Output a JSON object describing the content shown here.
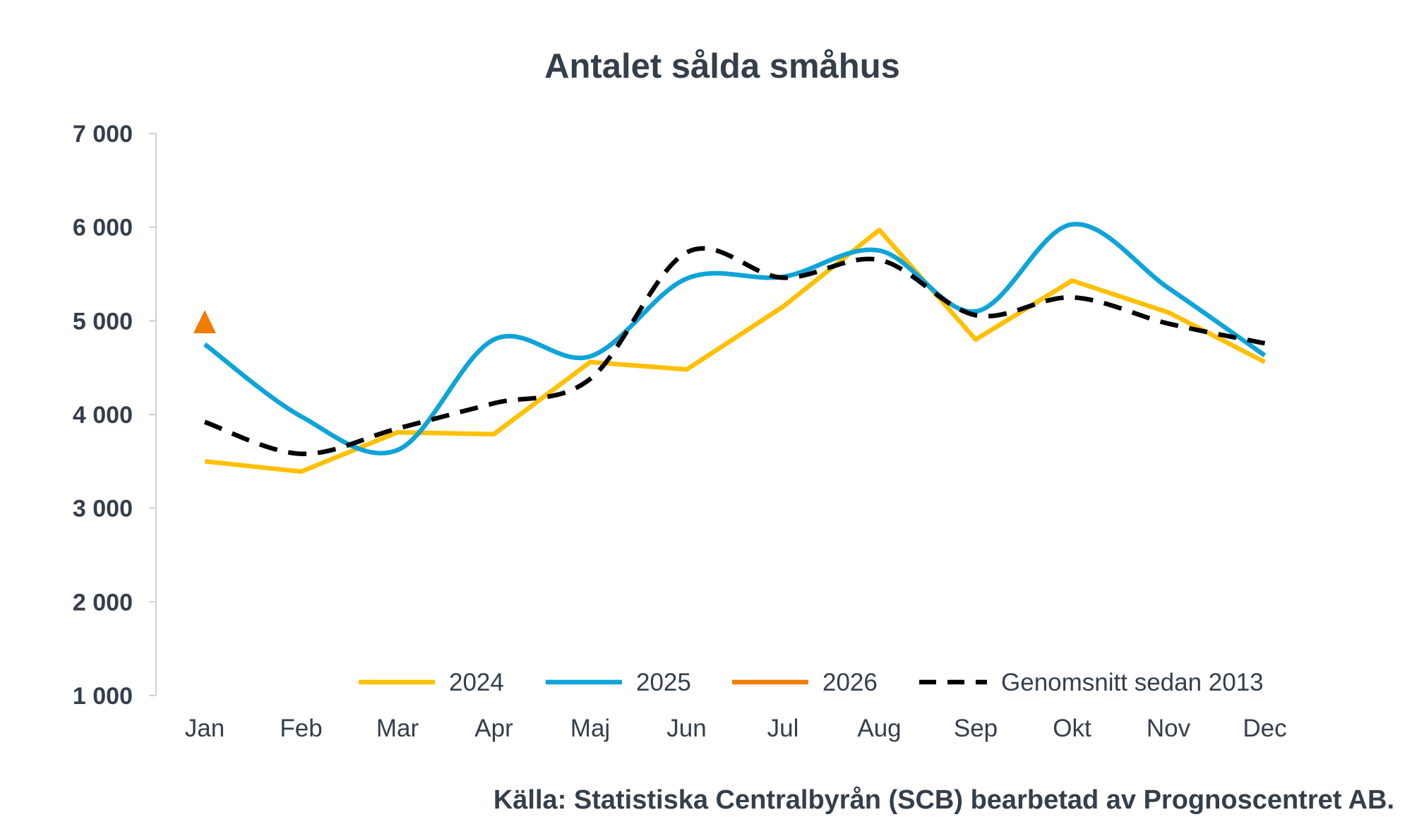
{
  "chart_data": {
    "type": "line",
    "title": "Antalet sålda småhus",
    "xlabel": "",
    "ylabel": "",
    "categories": [
      "Jan",
      "Feb",
      "Mar",
      "Apr",
      "Maj",
      "Jun",
      "Jul",
      "Aug",
      "Sep",
      "Okt",
      "Nov",
      "Dec"
    ],
    "ylim": [
      1000,
      7000
    ],
    "yticks": [
      1000,
      2000,
      3000,
      4000,
      5000,
      6000,
      7000
    ],
    "ytick_labels": [
      "1 000",
      "2 000",
      "3 000",
      "4 000",
      "5 000",
      "6 000",
      "7 000"
    ],
    "grid": false,
    "legend_position": "bottom-inside",
    "series": [
      {
        "name": "2024",
        "color": "#ffc000",
        "smooth": false,
        "dashed": false,
        "values": [
          3500,
          3390,
          3810,
          3790,
          4560,
          4480,
          5150,
          5970,
          4800,
          5430,
          5090,
          4560
        ]
      },
      {
        "name": "2025",
        "color": "#0ea4d9",
        "smooth": true,
        "dashed": false,
        "values": [
          4750,
          3980,
          3620,
          4800,
          4620,
          5450,
          5470,
          5750,
          5100,
          6030,
          5350,
          4630
        ]
      },
      {
        "name": "2026",
        "color": "#f07d00",
        "smooth": false,
        "dashed": false,
        "marker": "triangle",
        "values": [
          4980,
          null,
          null,
          null,
          null,
          null,
          null,
          null,
          null,
          null,
          null,
          null
        ]
      },
      {
        "name": "Genomsnitt sedan 2013",
        "color": "#000000",
        "smooth": true,
        "dashed": true,
        "values": [
          3920,
          3580,
          3850,
          4120,
          4380,
          5730,
          5460,
          5650,
          5060,
          5250,
          4970,
          4760
        ]
      }
    ],
    "source": "Källa: Statistiska Centralbyrån (SCB) bearbetad av Prognoscentret AB."
  }
}
